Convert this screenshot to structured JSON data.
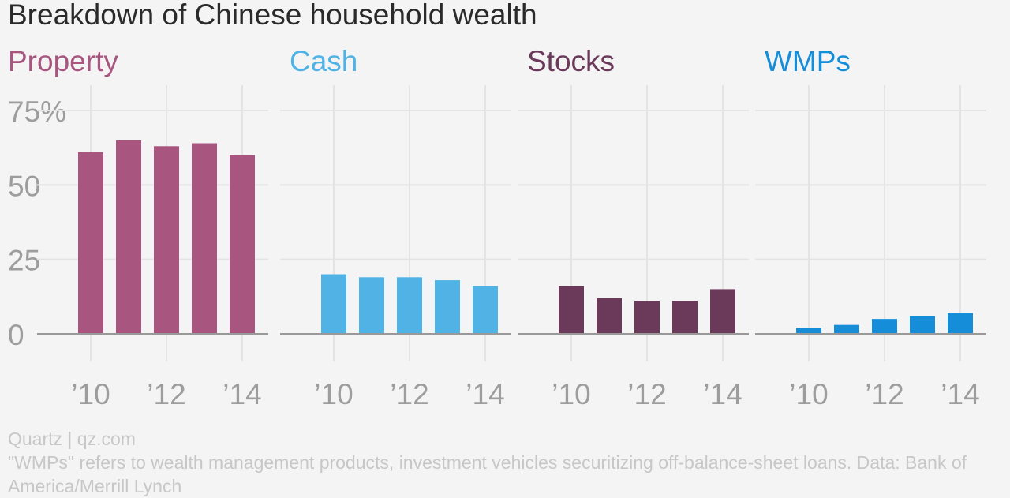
{
  "title": "Breakdown of Chinese household wealth",
  "chart_data": {
    "type": "bar",
    "title": "Breakdown of Chinese household wealth",
    "ylim": [
      0,
      75
    ],
    "yticks": [
      "75%",
      "50",
      "25",
      "0"
    ],
    "xtick_labels": [
      "’10",
      "’12",
      "’14"
    ],
    "grid": true,
    "panels": [
      {
        "name": "Property",
        "color": "#a8557f",
        "categories": [
          "2010",
          "2011",
          "2012",
          "2013",
          "2014"
        ],
        "values": [
          61,
          65,
          63,
          64,
          60
        ]
      },
      {
        "name": "Cash",
        "color": "#51b2e5",
        "categories": [
          "2010",
          "2011",
          "2012",
          "2013",
          "2014"
        ],
        "values": [
          20,
          19,
          19,
          18,
          16
        ]
      },
      {
        "name": "Stocks",
        "color": "#6b3a5a",
        "categories": [
          "2010",
          "2011",
          "2012",
          "2013",
          "2014"
        ],
        "values": [
          16,
          12,
          11,
          11,
          15
        ]
      },
      {
        "name": "WMPs",
        "color": "#168dd9",
        "categories": [
          "2010",
          "2011",
          "2012",
          "2013",
          "2014"
        ],
        "values": [
          2,
          3,
          5,
          6,
          7
        ]
      }
    ]
  },
  "footer": {
    "source": "Quartz | qz.com",
    "note_line1": "\"WMPs\" refers to wealth management products, investment vehicles securitizing off-balance-sheet loans. Data: Bank of",
    "note_line2": "America/Merrill Lynch"
  }
}
